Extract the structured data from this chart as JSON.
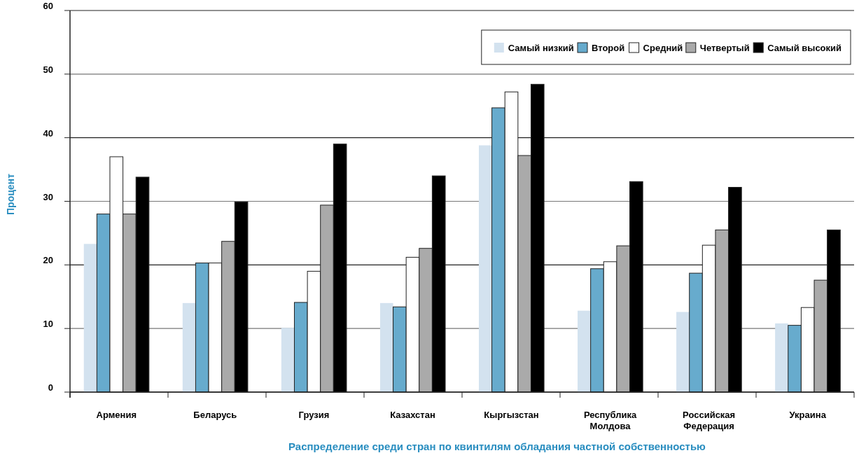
{
  "chart_data": {
    "type": "bar",
    "xlabel": "Распределение среди стран по квинтилям обладания частной собственностью",
    "ylabel": "Процент",
    "categories": [
      "Армения",
      "Беларусь",
      "Грузия",
      "Казахстан",
      "Кыргызстан",
      "Республика\nМолдова",
      "Российская\nФедерация",
      "Украина"
    ],
    "series": [
      {
        "name": "Самый низкий",
        "color": "#d3e2ef",
        "values": [
          23.3,
          14.0,
          10.1,
          14.0,
          38.8,
          12.8,
          12.6,
          10.8
        ]
      },
      {
        "name": "Второй",
        "color": "#67abcd",
        "values": [
          28.0,
          20.3,
          14.1,
          13.4,
          44.7,
          19.4,
          18.7,
          10.5
        ]
      },
      {
        "name": "Средний",
        "color": "#ffffff",
        "values": [
          37.0,
          20.3,
          19.0,
          21.2,
          47.2,
          20.5,
          23.1,
          13.3
        ]
      },
      {
        "name": "Четвертый",
        "color": "#aaaaaa",
        "values": [
          28.0,
          23.7,
          29.4,
          22.6,
          37.2,
          23.0,
          25.5,
          17.6
        ]
      },
      {
        "name": "Самый высокий",
        "color": "#000000",
        "values": [
          33.8,
          29.9,
          39.0,
          34.0,
          48.4,
          33.1,
          32.2,
          25.5
        ]
      }
    ],
    "ylim": [
      0,
      60
    ],
    "yticks": [
      0,
      10,
      20,
      30,
      40,
      50,
      60
    ],
    "grid": "y",
    "legend": "top right"
  }
}
